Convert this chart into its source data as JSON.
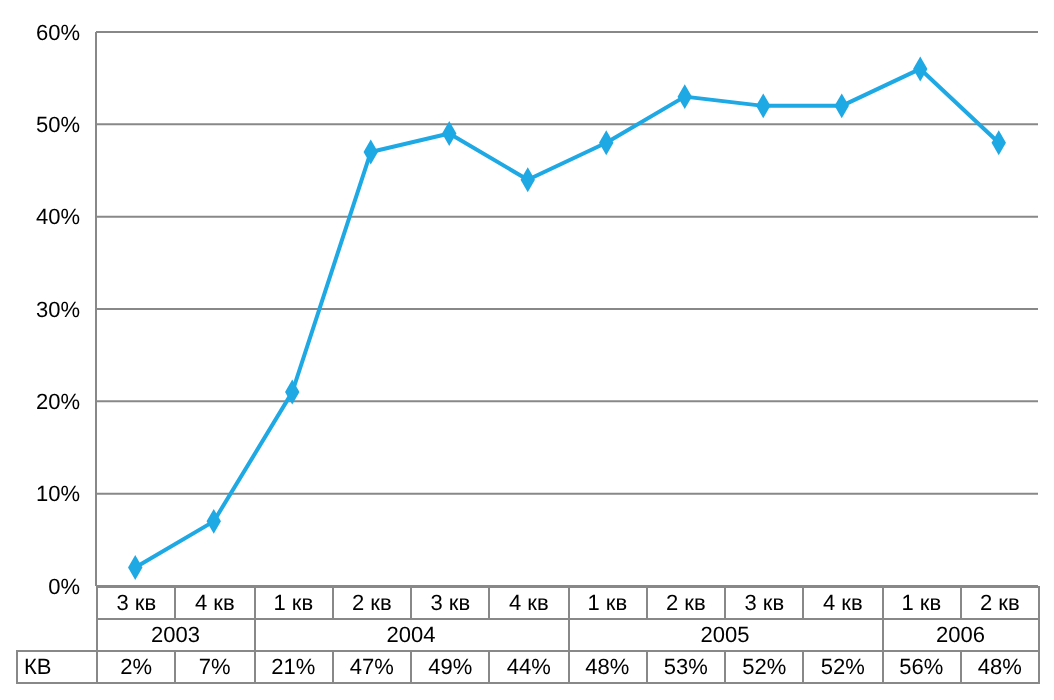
{
  "chart_data": {
    "type": "line",
    "categories": [
      "3 кв",
      "4 кв",
      "1 кв",
      "2 кв",
      "3 кв",
      "4 кв",
      "1 кв",
      "2 кв",
      "3 кв",
      "4 кв",
      "1 кв",
      "2 кв"
    ],
    "annotations": [
      "2003",
      "2004",
      "2005",
      "2006"
    ],
    "series": [
      {
        "name": "КВ",
        "color": "#1ea8e4",
        "values": [
          2,
          7,
          21,
          47,
          49,
          44,
          48,
          53,
          52,
          52,
          56,
          48
        ]
      }
    ],
    "value_labels": [
      "2%",
      "7%",
      "21%",
      "47%",
      "49%",
      "44%",
      "48%",
      "53%",
      "52%",
      "52%",
      "56%",
      "48%"
    ],
    "ylim": [
      0,
      60
    ],
    "yticks": [
      {
        "value": 0,
        "label": "0%"
      },
      {
        "value": 10,
        "label": "10%"
      },
      {
        "value": 20,
        "label": "20%"
      },
      {
        "value": 30,
        "label": "30%"
      },
      {
        "value": 40,
        "label": "40%"
      },
      {
        "value": 50,
        "label": "50%"
      },
      {
        "value": 60,
        "label": "60%"
      }
    ],
    "grid": "y",
    "marker": "diamond",
    "line_style": "solid"
  }
}
